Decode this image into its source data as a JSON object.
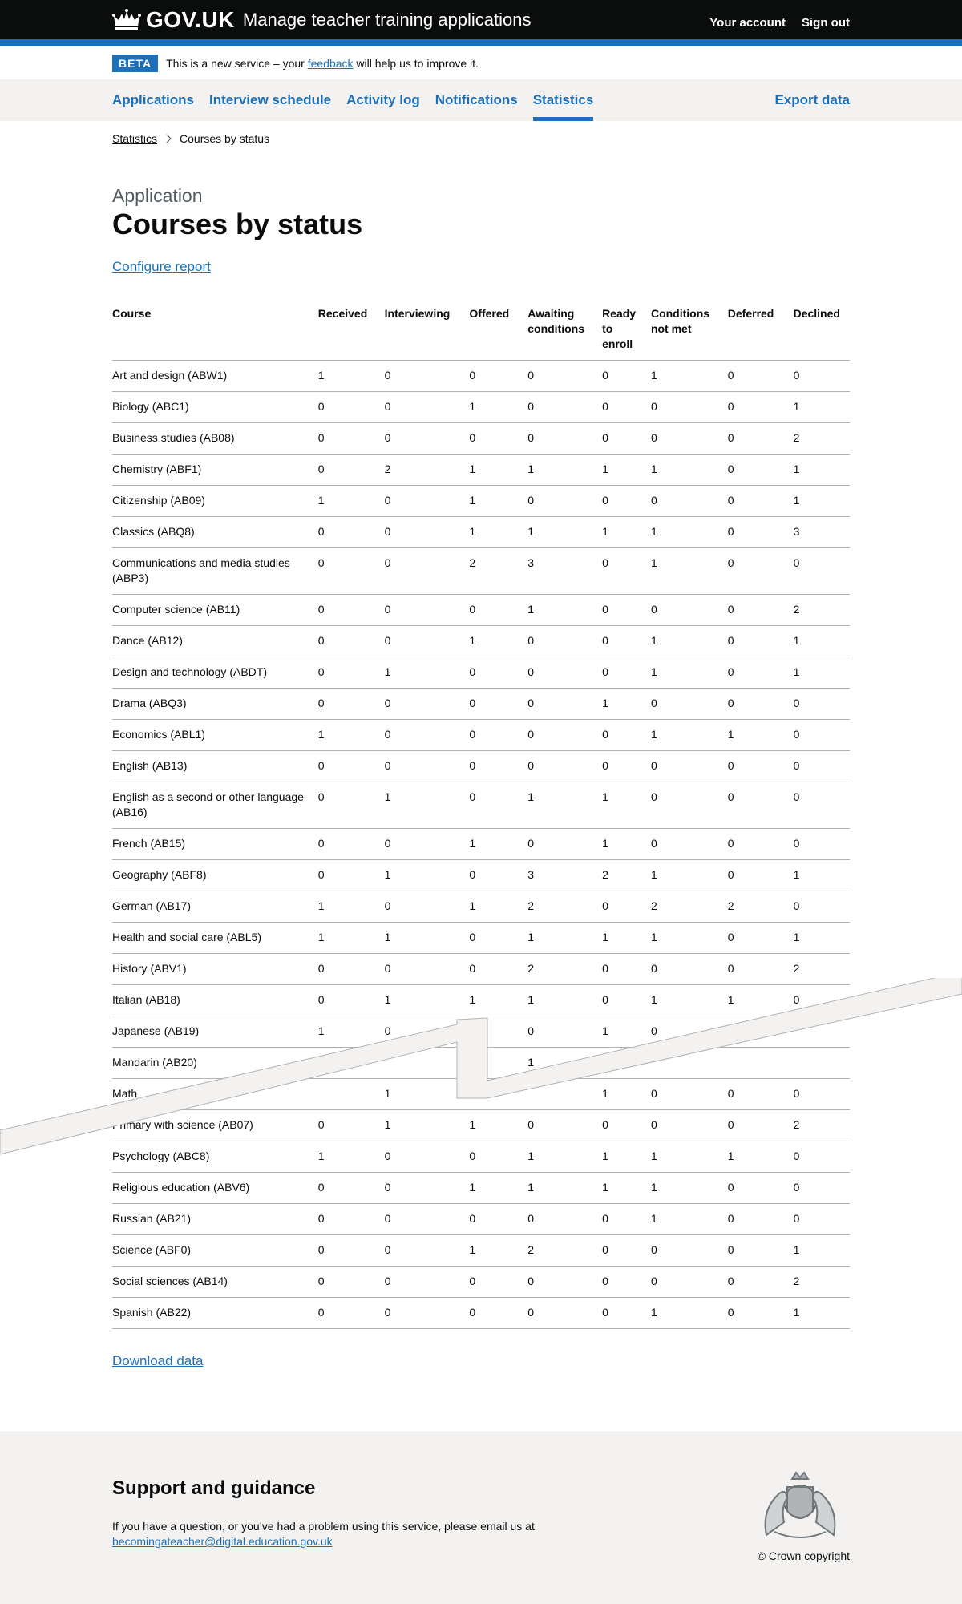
{
  "header": {
    "logotype": "GOV.UK",
    "service_name": "Manage teacher training applications",
    "links": [
      "Your account",
      "Sign out"
    ]
  },
  "phase_banner": {
    "tag": "BETA",
    "text_before": "This is a new service – your",
    "link": "feedback",
    "text_after": "will help us to improve it."
  },
  "nav": {
    "items": [
      "Applications",
      "Interview schedule",
      "Activity log",
      "Notifications",
      "Statistics"
    ],
    "current": "Statistics",
    "export": "Export data"
  },
  "breadcrumb": {
    "parent": "Statistics",
    "current": "Courses by status"
  },
  "page": {
    "caption": "Application",
    "title": "Courses by status",
    "configure_link": "Configure report",
    "download_link": "Download data"
  },
  "table": {
    "headers": [
      "Course",
      "Received",
      "Interviewing",
      "Offered",
      "Awaiting conditions",
      "Ready to enroll",
      "Conditions not met",
      "Deferred",
      "Declined"
    ],
    "rows": [
      [
        "Art and design (ABW1)",
        "1",
        "0",
        "0",
        "0",
        "0",
        "1",
        "0",
        "0"
      ],
      [
        "Biology (ABC1)",
        "0",
        "0",
        "1",
        "0",
        "0",
        "0",
        "0",
        "1"
      ],
      [
        "Business studies (AB08)",
        "0",
        "0",
        "0",
        "0",
        "0",
        "0",
        "0",
        "2"
      ],
      [
        "Chemistry (ABF1)",
        "0",
        "2",
        "1",
        "1",
        "1",
        "1",
        "0",
        "1"
      ],
      [
        "Citizenship (AB09)",
        "1",
        "0",
        "1",
        "0",
        "0",
        "0",
        "0",
        "1"
      ],
      [
        "Classics (ABQ8)",
        "0",
        "0",
        "1",
        "1",
        "1",
        "1",
        "0",
        "3"
      ],
      [
        "Communications and media studies (ABP3)",
        "0",
        "0",
        "2",
        "3",
        "0",
        "1",
        "0",
        "0"
      ],
      [
        "Computer science (AB11)",
        "0",
        "0",
        "0",
        "1",
        "0",
        "0",
        "0",
        "2"
      ],
      [
        "Dance (AB12)",
        "0",
        "0",
        "1",
        "0",
        "0",
        "1",
        "0",
        "1"
      ],
      [
        "Design and technology (ABDT)",
        "0",
        "1",
        "0",
        "0",
        "0",
        "1",
        "0",
        "1"
      ],
      [
        "Drama (ABQ3)",
        "0",
        "0",
        "0",
        "0",
        "1",
        "0",
        "0",
        "0"
      ],
      [
        "Economics (ABL1)",
        "1",
        "0",
        "0",
        "0",
        "0",
        "1",
        "1",
        "0"
      ],
      [
        "English (AB13)",
        "0",
        "0",
        "0",
        "0",
        "0",
        "0",
        "0",
        "0"
      ],
      [
        "English as a second or other language (AB16)",
        "0",
        "1",
        "0",
        "1",
        "1",
        "0",
        "0",
        "0"
      ],
      [
        "French (AB15)",
        "0",
        "0",
        "1",
        "0",
        "1",
        "0",
        "0",
        "0"
      ],
      [
        "Geography (ABF8)",
        "0",
        "1",
        "0",
        "3",
        "2",
        "1",
        "0",
        "1"
      ],
      [
        "German (AB17)",
        "1",
        "0",
        "1",
        "2",
        "0",
        "2",
        "2",
        "0"
      ],
      [
        "Health and social care (ABL5)",
        "1",
        "1",
        "0",
        "1",
        "1",
        "1",
        "0",
        "1"
      ],
      [
        "History (ABV1)",
        "0",
        "0",
        "0",
        "2",
        "0",
        "0",
        "0",
        "2"
      ],
      [
        "Italian (AB18)",
        "0",
        "1",
        "1",
        "1",
        "0",
        "1",
        "1",
        "0"
      ],
      [
        "Japanese (AB19)",
        "1",
        "0",
        "",
        "0",
        "1",
        "0",
        "",
        ""
      ],
      [
        "Mandarin (AB20)",
        "",
        "",
        "",
        "1",
        "",
        "",
        "",
        ""
      ],
      [
        "Math",
        "",
        "1",
        "",
        "",
        "1",
        "0",
        "0",
        "0"
      ],
      [
        "Primary with science (AB07)",
        "0",
        "1",
        "1",
        "0",
        "0",
        "0",
        "0",
        "2"
      ],
      [
        "Psychology (ABC8)",
        "1",
        "0",
        "0",
        "1",
        "1",
        "1",
        "1",
        "0"
      ],
      [
        "Religious education (ABV6)",
        "0",
        "0",
        "1",
        "1",
        "1",
        "1",
        "0",
        "0"
      ],
      [
        "Russian (AB21)",
        "0",
        "0",
        "0",
        "0",
        "0",
        "1",
        "0",
        "0"
      ],
      [
        "Science (ABF0)",
        "0",
        "0",
        "1",
        "2",
        "0",
        "0",
        "0",
        "1"
      ],
      [
        "Social sciences (AB14)",
        "0",
        "0",
        "0",
        "0",
        "0",
        "0",
        "0",
        "2"
      ],
      [
        "Spanish (AB22)",
        "0",
        "0",
        "0",
        "0",
        "0",
        "1",
        "0",
        "1"
      ]
    ]
  },
  "footer": {
    "heading": "Support and guidance",
    "text": "If you have a question, or you’ve had a problem using this service, please email us at",
    "email": "becomingateacher@digital.education.gov.uk",
    "copyright": "© Crown copyright"
  },
  "colors": {
    "brand": "#1d70b8",
    "header_bg": "#0b0c0c",
    "nav_bg": "#f3f2f1"
  }
}
